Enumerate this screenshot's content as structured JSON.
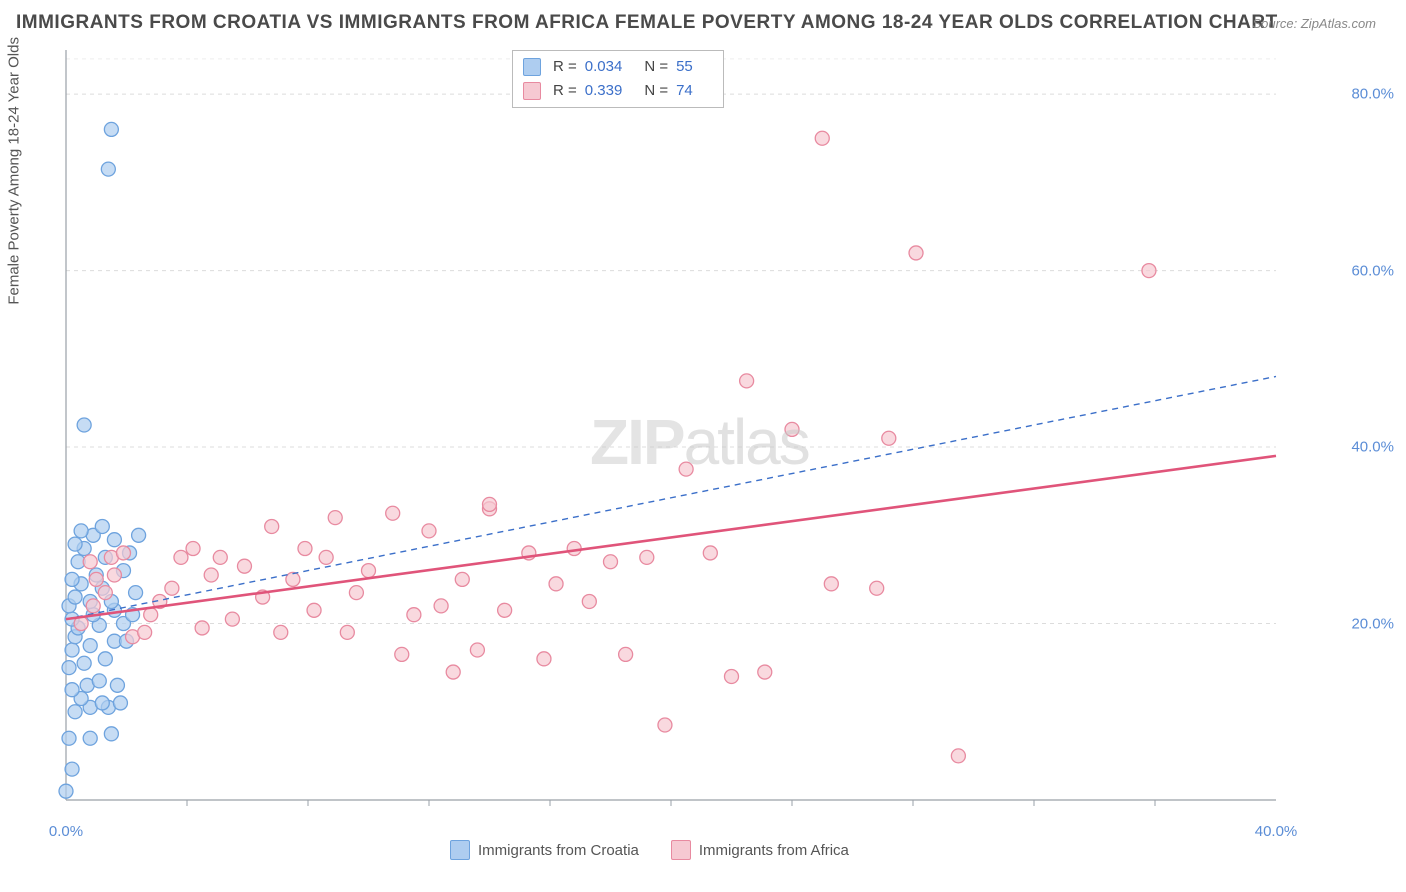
{
  "title": "IMMIGRANTS FROM CROATIA VS IMMIGRANTS FROM AFRICA FEMALE POVERTY AMONG 18-24 YEAR OLDS CORRELATION CHART",
  "source": "Source: ZipAtlas.com",
  "y_label": "Female Poverty Among 18-24 Year Olds",
  "watermark_bold": "ZIP",
  "watermark_rest": "atlas",
  "chart": {
    "type": "scatter",
    "xlim": [
      0,
      40
    ],
    "ylim": [
      0,
      85
    ],
    "x_ticks": [
      0,
      40
    ],
    "x_tick_labels": [
      "0.0%",
      "40.0%"
    ],
    "x_minor_ticks": [
      4.0,
      8.0,
      12.0,
      16.0,
      20.0,
      24.0,
      28.0,
      32.0,
      36.0
    ],
    "y_ticks": [
      20,
      40,
      60,
      80
    ],
    "y_tick_labels": [
      "20.0%",
      "40.0%",
      "60.0%",
      "80.0%"
    ],
    "background_color": "#ffffff",
    "grid_color": "#dcdcdc",
    "axis_line_color": "#9aa0a8",
    "series": [
      {
        "name": "Immigrants from Croatia",
        "key": "croatia",
        "marker_color": "#aecdf0",
        "marker_stroke": "#6ea3de",
        "marker_radius": 7,
        "trend_color": "#3b6fc9",
        "trend_dash": "6 5",
        "trend_width": 1.4,
        "R": "0.034",
        "N": "55",
        "trend_y0": 20.5,
        "trend_y1": 48.0,
        "points": [
          [
            0.0,
            1.0
          ],
          [
            0.2,
            3.5
          ],
          [
            0.1,
            7.0
          ],
          [
            0.8,
            7.0
          ],
          [
            1.5,
            7.5
          ],
          [
            0.3,
            10.0
          ],
          [
            0.8,
            10.5
          ],
          [
            1.4,
            10.5
          ],
          [
            0.5,
            11.5
          ],
          [
            1.2,
            11.0
          ],
          [
            1.8,
            11.0
          ],
          [
            0.2,
            12.5
          ],
          [
            0.7,
            13.0
          ],
          [
            1.1,
            13.5
          ],
          [
            1.7,
            13.0
          ],
          [
            0.1,
            15.0
          ],
          [
            0.6,
            15.5
          ],
          [
            1.3,
            16.0
          ],
          [
            0.2,
            17.0
          ],
          [
            0.8,
            17.5
          ],
          [
            1.6,
            18.0
          ],
          [
            0.3,
            18.5
          ],
          [
            2.0,
            18.0
          ],
          [
            0.4,
            19.5
          ],
          [
            1.1,
            19.8
          ],
          [
            1.9,
            20.0
          ],
          [
            0.2,
            20.5
          ],
          [
            0.9,
            21.0
          ],
          [
            1.6,
            21.5
          ],
          [
            2.2,
            21.0
          ],
          [
            0.1,
            22.0
          ],
          [
            0.8,
            22.5
          ],
          [
            1.5,
            22.5
          ],
          [
            0.3,
            23.0
          ],
          [
            1.2,
            24.0
          ],
          [
            2.3,
            23.5
          ],
          [
            0.5,
            24.5
          ],
          [
            0.2,
            25.0
          ],
          [
            1.0,
            25.5
          ],
          [
            1.9,
            26.0
          ],
          [
            0.4,
            27.0
          ],
          [
            1.3,
            27.5
          ],
          [
            2.1,
            28.0
          ],
          [
            0.6,
            28.5
          ],
          [
            0.3,
            29.0
          ],
          [
            1.6,
            29.5
          ],
          [
            0.9,
            30.0
          ],
          [
            2.4,
            30.0
          ],
          [
            0.5,
            30.5
          ],
          [
            1.2,
            31.0
          ],
          [
            0.6,
            42.5
          ],
          [
            1.4,
            71.5
          ],
          [
            1.5,
            76.0
          ]
        ]
      },
      {
        "name": "Immigrants from Africa",
        "key": "africa",
        "marker_color": "#f6c9d2",
        "marker_stroke": "#e88aa0",
        "marker_radius": 7,
        "trend_color": "#e0547a",
        "trend_dash": "",
        "trend_width": 2.6,
        "R": "0.339",
        "N": "74",
        "trend_y0": 20.5,
        "trend_y1": 39.0,
        "points": [
          [
            0.5,
            20.0
          ],
          [
            0.9,
            22.0
          ],
          [
            1.3,
            23.5
          ],
          [
            1.0,
            25.0
          ],
          [
            1.6,
            25.5
          ],
          [
            0.8,
            27.0
          ],
          [
            1.5,
            27.5
          ],
          [
            1.9,
            28.0
          ],
          [
            2.2,
            18.5
          ],
          [
            2.6,
            19.0
          ],
          [
            2.8,
            21.0
          ],
          [
            3.1,
            22.5
          ],
          [
            3.5,
            24.0
          ],
          [
            3.8,
            27.5
          ],
          [
            4.5,
            19.5
          ],
          [
            4.8,
            25.5
          ],
          [
            5.1,
            27.5
          ],
          [
            5.5,
            20.5
          ],
          [
            5.9,
            26.5
          ],
          [
            6.5,
            23.0
          ],
          [
            4.2,
            28.5
          ],
          [
            6.8,
            31.0
          ],
          [
            7.1,
            19.0
          ],
          [
            7.5,
            25.0
          ],
          [
            7.9,
            28.5
          ],
          [
            8.2,
            21.5
          ],
          [
            8.6,
            27.5
          ],
          [
            8.9,
            32.0
          ],
          [
            9.3,
            19.0
          ],
          [
            9.6,
            23.5
          ],
          [
            10.0,
            26.0
          ],
          [
            10.8,
            32.5
          ],
          [
            11.1,
            16.5
          ],
          [
            11.5,
            21.0
          ],
          [
            12.0,
            30.5
          ],
          [
            12.4,
            22.0
          ],
          [
            12.8,
            14.5
          ],
          [
            13.1,
            25.0
          ],
          [
            13.6,
            17.0
          ],
          [
            14.0,
            33.0
          ],
          [
            14.5,
            21.5
          ],
          [
            14.0,
            33.5
          ],
          [
            15.3,
            28.0
          ],
          [
            15.8,
            16.0
          ],
          [
            16.2,
            24.5
          ],
          [
            16.8,
            28.5
          ],
          [
            17.3,
            22.5
          ],
          [
            18.0,
            27.0
          ],
          [
            18.5,
            16.5
          ],
          [
            19.2,
            27.5
          ],
          [
            19.8,
            8.5
          ],
          [
            20.5,
            37.5
          ],
          [
            21.3,
            28.0
          ],
          [
            22.0,
            14.0
          ],
          [
            23.1,
            14.5
          ],
          [
            22.5,
            47.5
          ],
          [
            24.0,
            42.0
          ],
          [
            25.3,
            24.5
          ],
          [
            25.0,
            75.0
          ],
          [
            26.8,
            24.0
          ],
          [
            28.1,
            62.0
          ],
          [
            29.5,
            5.0
          ],
          [
            27.2,
            41.0
          ],
          [
            35.8,
            60.0
          ]
        ]
      }
    ]
  },
  "legend": {
    "stats_rows": [
      {
        "swatch_fill": "#aecdf0",
        "swatch_stroke": "#6ea3de",
        "R": "0.034",
        "N": "55"
      },
      {
        "swatch_fill": "#f6c9d2",
        "swatch_stroke": "#e88aa0",
        "R": "0.339",
        "N": "74"
      }
    ],
    "bottom": [
      {
        "label": "Immigrants from Croatia",
        "fill": "#aecdf0",
        "stroke": "#6ea3de"
      },
      {
        "label": "Immigrants from Africa",
        "fill": "#f6c9d2",
        "stroke": "#e88aa0"
      }
    ]
  }
}
